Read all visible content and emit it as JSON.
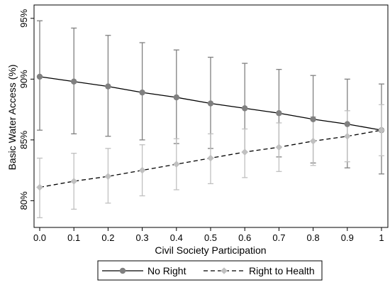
{
  "chart_data": {
    "type": "line",
    "xlabel": "Civil Society Participation",
    "ylabel": "Basic Water Access (%)",
    "x": [
      0.0,
      0.1,
      0.2,
      0.3,
      0.4,
      0.5,
      0.6,
      0.7,
      0.8,
      0.9,
      1.0
    ],
    "x_tick_labels": [
      "0.0",
      "0.1",
      "0.2",
      "0.3",
      "0.4",
      "0.5",
      "0.6",
      "0.7",
      "0.8",
      "0.9",
      "1"
    ],
    "y_ticks": [
      80,
      85,
      90,
      95
    ],
    "y_tick_labels": [
      "80%",
      "85%",
      "90%",
      "95%"
    ],
    "xlim": [
      0.0,
      1.0
    ],
    "ylim": [
      77.8,
      96.1
    ],
    "grid": false,
    "legend_position": "bottom",
    "series": [
      {
        "name": "No Right",
        "color": "#808080",
        "line_color": "#000000",
        "line_style": "solid",
        "marker": "circle",
        "values": [
          90.2,
          89.8,
          89.4,
          88.9,
          88.5,
          88.0,
          87.6,
          87.2,
          86.7,
          86.3,
          85.8
        ],
        "lower": [
          85.8,
          85.5,
          85.3,
          85.0,
          84.7,
          84.3,
          84.0,
          83.6,
          83.1,
          82.7,
          82.2
        ],
        "upper": [
          94.8,
          94.2,
          93.6,
          93.0,
          92.4,
          91.8,
          91.3,
          90.8,
          90.3,
          90.0,
          89.6
        ]
      },
      {
        "name": "Right to Health",
        "color": "#c0c0c0",
        "line_color": "#000000",
        "line_style": "dashed",
        "marker": "diamond",
        "values": [
          81.1,
          81.6,
          82.0,
          82.5,
          83.0,
          83.5,
          84.0,
          84.4,
          84.9,
          85.3,
          85.8
        ],
        "lower": [
          78.6,
          79.3,
          79.8,
          80.4,
          80.9,
          81.4,
          81.9,
          82.4,
          82.9,
          83.2,
          83.7
        ],
        "upper": [
          83.5,
          83.9,
          84.3,
          84.6,
          85.1,
          85.5,
          85.9,
          86.4,
          86.9,
          87.4,
          87.9
        ]
      }
    ]
  }
}
